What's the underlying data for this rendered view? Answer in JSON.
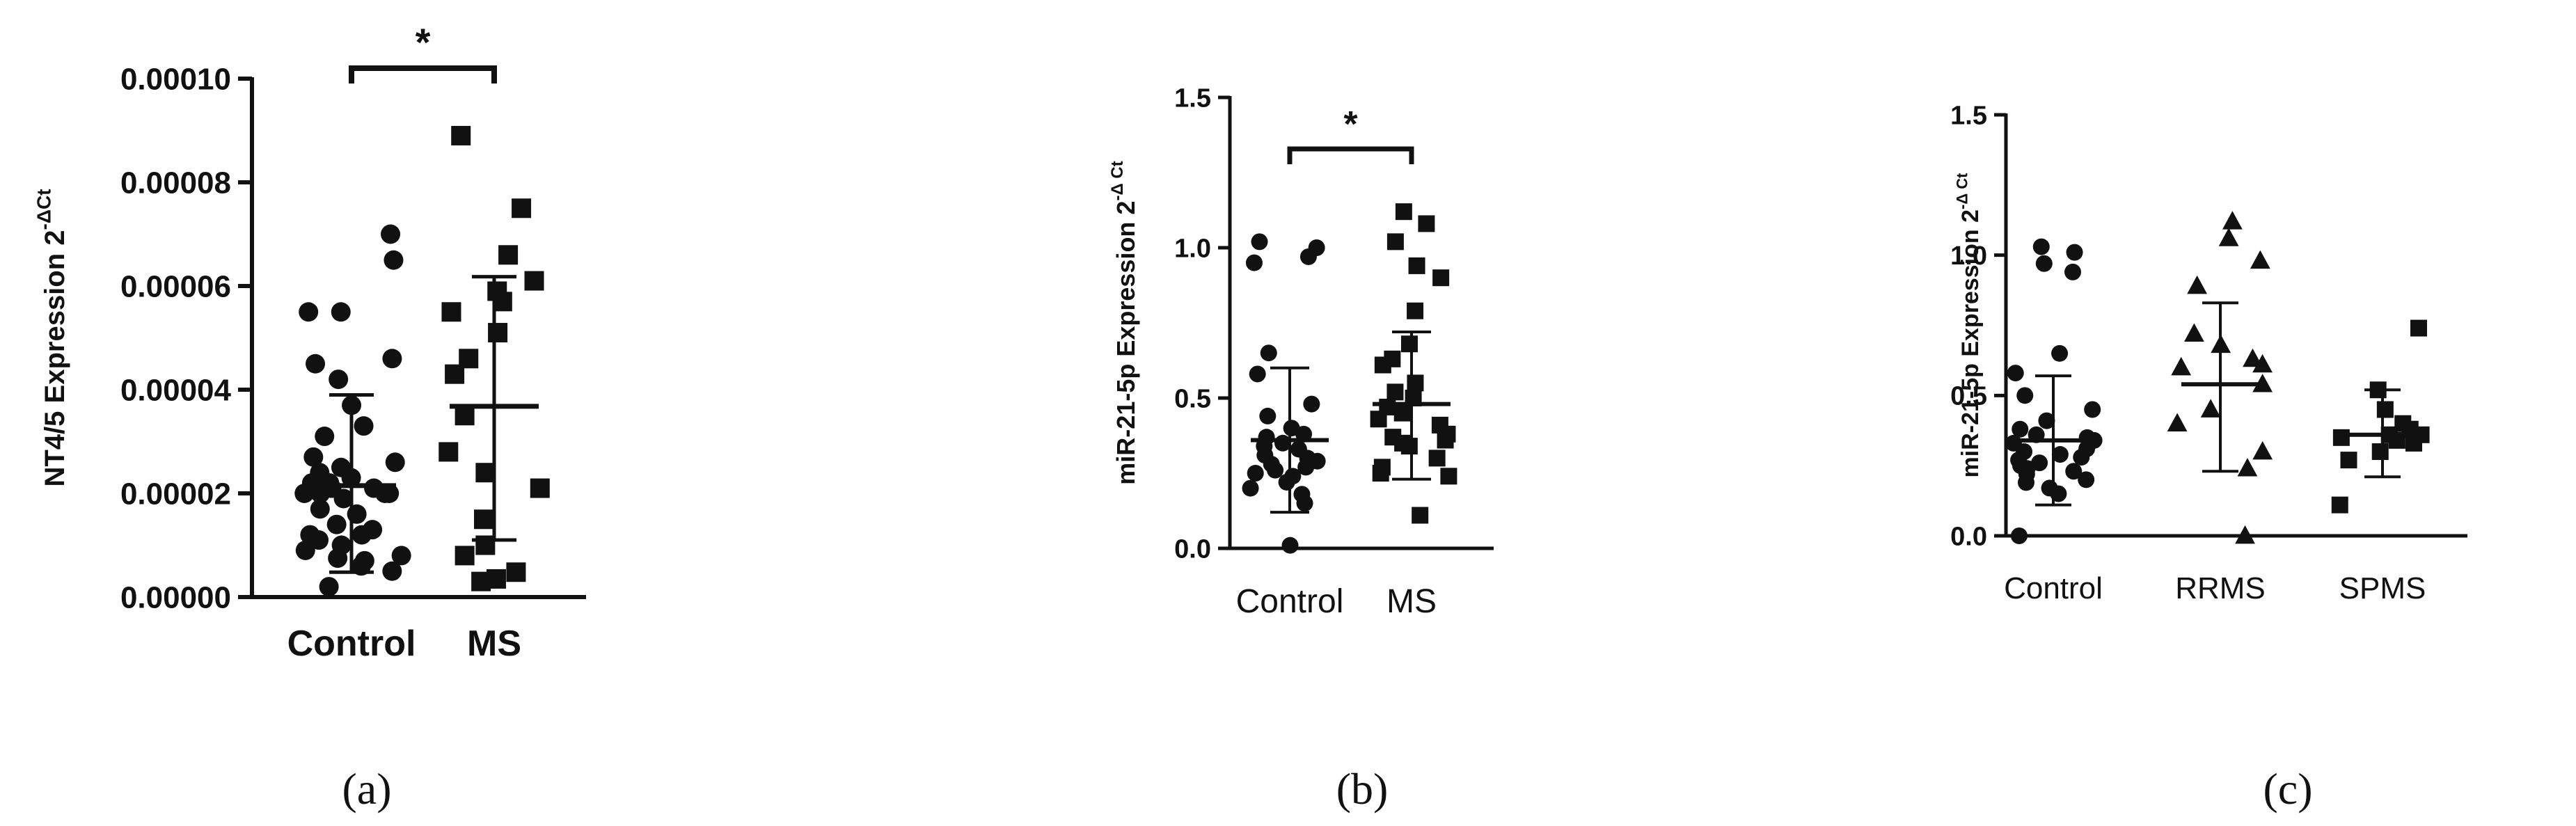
{
  "chart_data": [
    {
      "type": "scatter",
      "panel_label": "(a)",
      "ylabel": "NT4/5 Expression 2",
      "ylabel_sup": "-ΔCt",
      "ylim": [
        0,
        0.0001
      ],
      "yticks": [
        "0.00000",
        "0.00002",
        "0.00004",
        "0.00006",
        "0.00008",
        "0.00010"
      ],
      "categories": [
        "Control",
        "MS"
      ],
      "significance": "*",
      "series": [
        {
          "marker": "circle",
          "mean": 2.15e-05,
          "sd_upper": 3.9e-05,
          "sd_lower": 4.8e-06,
          "values": [
            7e-05,
            6.5e-05,
            5.5e-05,
            5.5e-05,
            4.6e-05,
            4.5e-05,
            4.2e-05,
            3.7e-05,
            3.3e-05,
            3.1e-05,
            2.7e-05,
            2.6e-05,
            2.5e-05,
            2.4e-05,
            2.3e-05,
            2.2e-05,
            2.2e-05,
            2.1e-05,
            2.1e-05,
            2.1e-05,
            2e-05,
            2e-05,
            2e-05,
            2e-05,
            1.9e-05,
            1.7e-05,
            1.6e-05,
            1.4e-05,
            1.3e-05,
            1.2e-05,
            1.2e-05,
            1.1e-05,
            1e-05,
            9e-06,
            8e-06,
            7.5e-06,
            7e-06,
            6e-06,
            5e-06,
            2e-06
          ]
        },
        {
          "marker": "square",
          "mean": 3.68e-05,
          "sd_upper": 6.18e-05,
          "sd_lower": 1.1e-05,
          "values": [
            8.9e-05,
            7.5e-05,
            6.6e-05,
            6.1e-05,
            5.9e-05,
            5.7e-05,
            5.5e-05,
            5.1e-05,
            4.6e-05,
            4.3e-05,
            3.5e-05,
            2.8e-05,
            2.4e-05,
            2.1e-05,
            1.5e-05,
            1e-05,
            8e-06,
            4.8e-06,
            3.5e-06,
            3e-06
          ]
        }
      ]
    },
    {
      "type": "scatter",
      "panel_label": "(b)",
      "ylabel": "miR-21-5p Expression 2",
      "ylabel_sup": "-Δ Ct",
      "ylim": [
        0,
        1.5
      ],
      "yticks": [
        "0.0",
        "0.5",
        "1.0",
        "1.5"
      ],
      "categories": [
        "Control",
        "MS"
      ],
      "significance": "*",
      "series": [
        {
          "marker": "circle",
          "mean": 0.36,
          "sd_upper": 0.6,
          "sd_lower": 0.12,
          "values": [
            1.02,
            1.0,
            0.97,
            0.95,
            0.65,
            0.58,
            0.48,
            0.44,
            0.4,
            0.38,
            0.37,
            0.35,
            0.34,
            0.33,
            0.31,
            0.3,
            0.29,
            0.28,
            0.27,
            0.26,
            0.25,
            0.24,
            0.22,
            0.2,
            0.18,
            0.15,
            0.01
          ]
        },
        {
          "marker": "square",
          "mean": 0.48,
          "sd_upper": 0.72,
          "sd_lower": 0.23,
          "values": [
            1.12,
            1.08,
            1.02,
            0.94,
            0.9,
            0.79,
            0.68,
            0.63,
            0.61,
            0.55,
            0.52,
            0.5,
            0.47,
            0.45,
            0.43,
            0.41,
            0.38,
            0.37,
            0.36,
            0.35,
            0.34,
            0.3,
            0.27,
            0.25,
            0.24,
            0.11
          ]
        }
      ]
    },
    {
      "type": "scatter",
      "panel_label": "(c)",
      "ylabel": "miR-21-5p Expression 2",
      "ylabel_sup": "-Δ Ct",
      "ylim": [
        0,
        1.5
      ],
      "yticks": [
        "0.0",
        "0.5",
        "1.0",
        "1.5"
      ],
      "categories": [
        "Control",
        "RRMS",
        "SPMS"
      ],
      "significance": "",
      "series": [
        {
          "marker": "circle",
          "mean": 0.34,
          "sd_upper": 0.57,
          "sd_lower": 0.11,
          "values": [
            1.03,
            1.01,
            0.97,
            0.94,
            0.65,
            0.58,
            0.5,
            0.45,
            0.41,
            0.38,
            0.36,
            0.35,
            0.34,
            0.33,
            0.31,
            0.3,
            0.29,
            0.28,
            0.27,
            0.26,
            0.25,
            0.24,
            0.23,
            0.22,
            0.2,
            0.19,
            0.17,
            0.15,
            0.0
          ]
        },
        {
          "marker": "triangle",
          "mean": 0.54,
          "sd_upper": 0.83,
          "sd_lower": 0.23,
          "values": [
            1.12,
            1.06,
            0.98,
            0.89,
            0.72,
            0.68,
            0.63,
            0.61,
            0.6,
            0.54,
            0.45,
            0.4,
            0.3,
            0.24,
            0.0
          ]
        },
        {
          "marker": "square",
          "mean": 0.36,
          "sd_upper": 0.52,
          "sd_lower": 0.21,
          "values": [
            0.74,
            0.52,
            0.45,
            0.4,
            0.38,
            0.36,
            0.36,
            0.35,
            0.34,
            0.33,
            0.3,
            0.27,
            0.11
          ]
        }
      ]
    }
  ]
}
